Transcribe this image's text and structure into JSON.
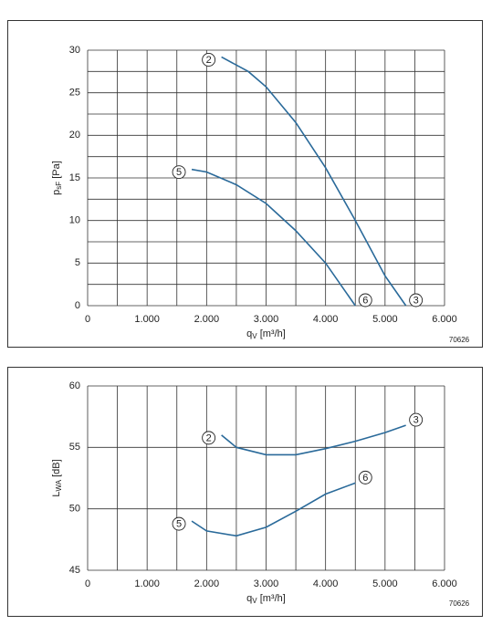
{
  "chart_data": [
    {
      "type": "line",
      "y_label": "p",
      "y_label_sub": "sF",
      "y_label_unit": " [Pa]",
      "x_label": "q",
      "x_label_sub": "V",
      "x_label_unit": " [m³/h]",
      "code": "70626",
      "xlim": [
        0,
        6000
      ],
      "xticks": [
        0,
        {
          "value": 1000,
          "label": "1.000"
        },
        {
          "value": 2000,
          "label": "2.000"
        },
        {
          "value": 3000,
          "label": "3.000"
        },
        {
          "value": 4000,
          "label": "4.000"
        },
        {
          "value": 5000,
          "label": "5.000"
        },
        {
          "value": 6000,
          "label": "6.000"
        }
      ],
      "x_minor_grid": [
        500,
        1500,
        2500,
        3500,
        4500,
        5500
      ],
      "ylim": [
        0,
        30
      ],
      "yticks": [
        0,
        5,
        10,
        15,
        20,
        25,
        30
      ],
      "y_minor_grid": [
        2.5,
        7.5,
        12.5,
        17.5,
        22.5,
        27.5
      ],
      "grid": true,
      "series": [
        {
          "start_label": "2",
          "end_label": "3",
          "color": "#2a6a9a",
          "x": [
            2250,
            2700,
            3000,
            3500,
            4000,
            4500,
            5000,
            5350
          ],
          "values": [
            29.2,
            27.5,
            25.7,
            21.5,
            16.2,
            10,
            3.5,
            0
          ]
        },
        {
          "start_label": "5",
          "end_label": "6",
          "color": "#2a6a9a",
          "x": [
            1750,
            2000,
            2500,
            3000,
            3500,
            4000,
            4500
          ],
          "values": [
            16,
            15.7,
            14.2,
            12,
            8.8,
            5,
            0
          ]
        }
      ]
    },
    {
      "type": "line",
      "y_label": "L",
      "y_label_sub": "WA",
      "y_label_unit": " [dB]",
      "x_label": "q",
      "x_label_sub": "V",
      "x_label_unit": " [m³/h]",
      "code": "70626",
      "xlim": [
        0,
        6000
      ],
      "xticks": [
        0,
        {
          "value": 1000,
          "label": "1.000"
        },
        {
          "value": 2000,
          "label": "2.000"
        },
        {
          "value": 3000,
          "label": "3.000"
        },
        {
          "value": 4000,
          "label": "4.000"
        },
        {
          "value": 5000,
          "label": "5.000"
        },
        {
          "value": 6000,
          "label": "6.000"
        }
      ],
      "x_minor_grid": [
        500,
        1500,
        2500,
        3500,
        4500,
        5500
      ],
      "ylim": [
        45,
        60
      ],
      "yticks": [
        45,
        50,
        55,
        60
      ],
      "y_minor_grid": [],
      "grid": true,
      "series": [
        {
          "start_label": "2",
          "end_label": "3",
          "color": "#2a6a9a",
          "x": [
            2250,
            2500,
            3000,
            3500,
            4000,
            4500,
            5000,
            5350
          ],
          "values": [
            56,
            55,
            54.4,
            54.4,
            54.9,
            55.5,
            56.2,
            56.8
          ]
        },
        {
          "start_label": "5",
          "end_label": "6",
          "color": "#2a6a9a",
          "x": [
            1750,
            2000,
            2500,
            3000,
            3500,
            4000,
            4500
          ],
          "values": [
            49,
            48.2,
            47.8,
            48.5,
            49.8,
            51.2,
            52.1
          ]
        }
      ]
    }
  ]
}
